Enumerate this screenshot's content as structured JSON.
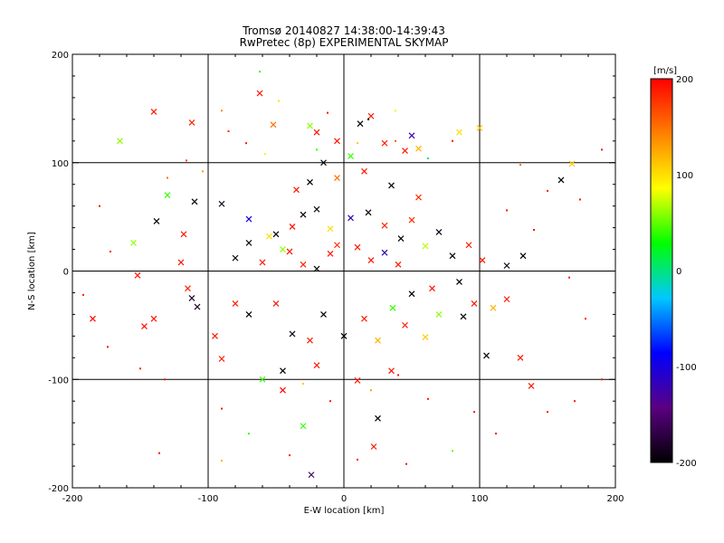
{
  "chart_data": {
    "type": "scatter",
    "title": "Tromsø 20140827 14:38:00-14:39:43",
    "subtitle": "RwPretec (8p) EXPERIMENTAL SKYMAP",
    "xlabel": "E-W location [km]",
    "ylabel": "N-S location [km]",
    "xlim": [
      -200,
      200
    ],
    "ylim": [
      -200,
      200
    ],
    "xticks": [
      "-200",
      "-100",
      "0",
      "100",
      "200"
    ],
    "yticks": [
      "-200",
      "-100",
      "0",
      "100",
      "200"
    ],
    "grid_lines_x": [
      -100,
      0,
      100
    ],
    "grid_lines_y": [
      -100,
      0,
      100
    ],
    "colorbar": {
      "label": "[m/s]",
      "range": [
        -200,
        200
      ],
      "ticks": [
        "200",
        "100",
        "0",
        "-100",
        "-200"
      ],
      "colormap": [
        "#000000",
        "#5a0082",
        "#0000ff",
        "#00c8ff",
        "#00ff00",
        "#ffff00",
        "#ff8000",
        "#ff0000"
      ]
    },
    "series": [
      {
        "marker": "x",
        "points": [
          [
            -140,
            147,
            190
          ],
          [
            -112,
            137,
            185
          ],
          [
            -165,
            120,
            60
          ],
          [
            -130,
            70,
            40
          ],
          [
            -138,
            46,
            -200
          ],
          [
            -155,
            26,
            60
          ],
          [
            -152,
            -4,
            190
          ],
          [
            -147,
            -51,
            195
          ],
          [
            -140,
            -44,
            190
          ],
          [
            -108,
            -33,
            -180
          ],
          [
            -112,
            -25,
            -180
          ],
          [
            -120,
            8,
            190
          ],
          [
            -185,
            -44,
            195
          ],
          [
            -110,
            64,
            -200
          ],
          [
            -25,
            134,
            60
          ],
          [
            -52,
            135,
            150
          ],
          [
            -62,
            164,
            190
          ],
          [
            20,
            143,
            190
          ],
          [
            50,
            125,
            -120
          ],
          [
            55,
            113,
            120
          ],
          [
            100,
            132,
            110
          ],
          [
            160,
            84,
            -200
          ],
          [
            -30,
            -143,
            40
          ],
          [
            -24,
            -188,
            -160
          ],
          [
            22,
            -162,
            190
          ],
          [
            105,
            -78,
            -200
          ],
          [
            130,
            -80,
            190
          ],
          [
            138,
            -106,
            190
          ],
          [
            60,
            -61,
            110
          ],
          [
            96,
            -30,
            190
          ],
          [
            120,
            -26,
            190
          ],
          [
            85,
            -10,
            -200
          ],
          [
            -90,
            62,
            -190
          ],
          [
            -70,
            48,
            -100
          ],
          [
            -50,
            34,
            -200
          ],
          [
            -30,
            52,
            -200
          ],
          [
            -38,
            41,
            195
          ],
          [
            -20,
            57,
            -200
          ],
          [
            -10,
            39,
            100
          ],
          [
            5,
            49,
            -120
          ],
          [
            18,
            54,
            -200
          ],
          [
            30,
            42,
            185
          ],
          [
            42,
            30,
            -200
          ],
          [
            50,
            47,
            180
          ],
          [
            60,
            23,
            70
          ],
          [
            70,
            36,
            -190
          ],
          [
            80,
            14,
            -200
          ],
          [
            92,
            24,
            190
          ],
          [
            102,
            10,
            190
          ],
          [
            120,
            5,
            -190
          ],
          [
            132,
            14,
            -200
          ],
          [
            -70,
            -40,
            -200
          ],
          [
            -50,
            -30,
            190
          ],
          [
            -38,
            -58,
            -190
          ],
          [
            -25,
            -64,
            185
          ],
          [
            -15,
            -40,
            -200
          ],
          [
            0,
            -60,
            -200
          ],
          [
            15,
            -44,
            185
          ],
          [
            25,
            -64,
            120
          ],
          [
            36,
            -34,
            40
          ],
          [
            50,
            -21,
            -200
          ],
          [
            65,
            -16,
            190
          ],
          [
            -80,
            12,
            -200
          ],
          [
            -60,
            8,
            190
          ],
          [
            -40,
            18,
            195
          ],
          [
            -30,
            6,
            185
          ],
          [
            -20,
            2,
            -200
          ],
          [
            -10,
            16,
            190
          ],
          [
            -5,
            24,
            180
          ],
          [
            10,
            22,
            190
          ],
          [
            20,
            10,
            190
          ],
          [
            30,
            17,
            -120
          ],
          [
            40,
            6,
            190
          ],
          [
            -70,
            26,
            -200
          ],
          [
            -55,
            32,
            100
          ],
          [
            -45,
            20,
            60
          ],
          [
            -35,
            75,
            190
          ],
          [
            -25,
            82,
            -200
          ],
          [
            -5,
            86,
            150
          ],
          [
            15,
            92,
            190
          ],
          [
            35,
            79,
            -200
          ],
          [
            55,
            68,
            180
          ],
          [
            -15,
            100,
            -200
          ],
          [
            5,
            106,
            40
          ],
          [
            45,
            111,
            190
          ],
          [
            30,
            118,
            185
          ],
          [
            -45,
            -92,
            -200
          ],
          [
            -20,
            -87,
            190
          ],
          [
            10,
            -101,
            190
          ],
          [
            35,
            -92,
            190
          ],
          [
            -45,
            -110,
            195
          ],
          [
            -95,
            -60,
            190
          ],
          [
            -90,
            -81,
            190
          ],
          [
            -115,
            -16,
            185
          ],
          [
            -118,
            34,
            190
          ],
          [
            25,
            -136,
            -200
          ],
          [
            70,
            -40,
            60
          ],
          [
            45,
            -50,
            190
          ],
          [
            88,
            -42,
            -200
          ],
          [
            110,
            -34,
            120
          ],
          [
            -60,
            -100,
            40
          ],
          [
            -80,
            -30,
            190
          ],
          [
            -5,
            120,
            190
          ],
          [
            -20,
            128,
            190
          ],
          [
            12,
            136,
            -200
          ],
          [
            85,
            128,
            100
          ],
          [
            168,
            99,
            110
          ]
        ]
      },
      {
        "marker": "dot",
        "points": [
          [
            -62,
            184,
            40
          ],
          [
            -48,
            157,
            100
          ],
          [
            -90,
            148,
            140
          ],
          [
            -85,
            129,
            180
          ],
          [
            -72,
            118,
            190
          ],
          [
            -116,
            102,
            170
          ],
          [
            -104,
            92,
            130
          ],
          [
            -130,
            86,
            150
          ],
          [
            -58,
            108,
            80
          ],
          [
            -20,
            112,
            40
          ],
          [
            10,
            118,
            110
          ],
          [
            38,
            120,
            160
          ],
          [
            62,
            104,
            0
          ],
          [
            80,
            120,
            190
          ],
          [
            130,
            98,
            150
          ],
          [
            150,
            74,
            190
          ],
          [
            174,
            66,
            190
          ],
          [
            190,
            112,
            190
          ],
          [
            -180,
            60,
            190
          ],
          [
            -172,
            18,
            190
          ],
          [
            -192,
            -22,
            190
          ],
          [
            -174,
            -70,
            190
          ],
          [
            -150,
            -90,
            190
          ],
          [
            -132,
            -100,
            190
          ],
          [
            -90,
            -127,
            190
          ],
          [
            -70,
            -150,
            40
          ],
          [
            -40,
            -170,
            190
          ],
          [
            -136,
            -168,
            190
          ],
          [
            -90,
            -175,
            120
          ],
          [
            10,
            -174,
            190
          ],
          [
            46,
            -178,
            190
          ],
          [
            80,
            -166,
            50
          ],
          [
            112,
            -150,
            190
          ],
          [
            150,
            -130,
            190
          ],
          [
            170,
            -120,
            190
          ],
          [
            190,
            -100,
            190
          ],
          [
            166,
            -6,
            190
          ],
          [
            178,
            -44,
            190
          ],
          [
            140,
            38,
            190
          ],
          [
            120,
            56,
            190
          ],
          [
            96,
            -130,
            190
          ],
          [
            62,
            -118,
            190
          ],
          [
            40,
            -96,
            190
          ],
          [
            20,
            -110,
            130
          ],
          [
            -10,
            -120,
            190
          ],
          [
            -30,
            -104,
            110
          ],
          [
            -12,
            146,
            190
          ],
          [
            18,
            140,
            -200
          ],
          [
            38,
            148,
            80
          ]
        ]
      }
    ]
  }
}
